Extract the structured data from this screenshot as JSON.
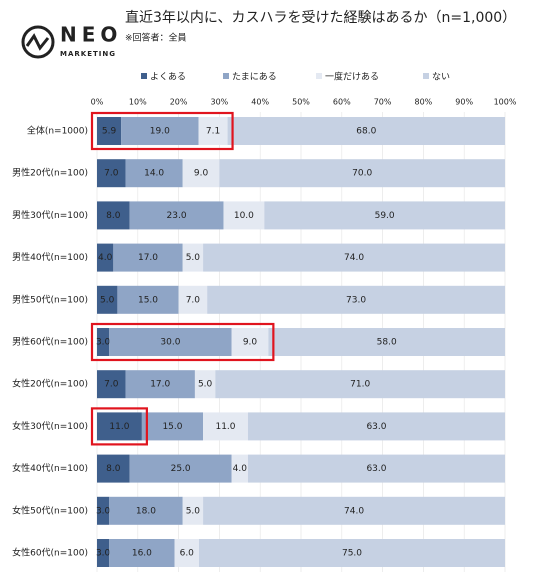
{
  "brand": {
    "name": "NEO",
    "sub": "MARKETING"
  },
  "chart_data": {
    "type": "stacked-bar-horizontal",
    "title": "直近3年以内に、カスハラを受けた経験はあるか（n=1,000）",
    "subtitle": "※回答者：全員",
    "categories": [
      "全体(n=1000)",
      "男性20代(n=100)",
      "男性30代(n=100)",
      "男性40代(n=100)",
      "男性50代(n=100)",
      "男性60代(n=100)",
      "女性20代(n=100)",
      "女性30代(n=100)",
      "女性40代(n=100)",
      "女性50代(n=100)",
      "女性60代(n=100)"
    ],
    "series": [
      {
        "name": "よくある",
        "color": "#3f5f8c",
        "values": [
          5.9,
          7,
          8,
          4,
          5,
          3,
          7,
          11,
          8,
          3,
          3
        ],
        "value_labels": [
          "5.9",
          "7.0",
          "8.0",
          "4.0",
          "5.0",
          "3.0",
          "7.0",
          "11.0",
          "8.0",
          "3.0",
          "3.0"
        ]
      },
      {
        "name": "たまにある",
        "color": "#8fa5c6",
        "values": [
          19,
          14,
          23,
          17,
          15,
          30,
          17,
          15,
          25,
          18,
          16
        ],
        "value_labels": [
          "19.0",
          "14.0",
          "23.0",
          "17.0",
          "15.0",
          "30.0",
          "17.0",
          "15.0",
          "25.0",
          "18.0",
          "16.0"
        ]
      },
      {
        "name": "一度だけある",
        "color": "#e4e9f2",
        "values": [
          7.1,
          9,
          10,
          5,
          7,
          9,
          5,
          11,
          4,
          5,
          6
        ],
        "value_labels": [
          "7.1",
          "9.0",
          "10.0",
          "5.0",
          "7.0",
          "9.0",
          "5.0",
          "11.0",
          "4.0",
          "5.0",
          "6.0"
        ]
      },
      {
        "name": "ない",
        "color": "#c6d1e3",
        "values": [
          68,
          70,
          59,
          74,
          73,
          58,
          71,
          63,
          63,
          74,
          75
        ],
        "value_labels": [
          "68.0",
          "70.0",
          "59.0",
          "74.0",
          "73.0",
          "58.0",
          "71.0",
          "63.0",
          "63.0",
          "74.0",
          "75.0"
        ]
      }
    ],
    "xlim": [
      0,
      100
    ],
    "xticks": [
      {
        "value": 0,
        "label": "0%"
      },
      {
        "value": 10,
        "label": "10%"
      },
      {
        "value": 20,
        "label": "20%"
      },
      {
        "value": 30,
        "label": "30%"
      },
      {
        "value": 40,
        "label": "40%"
      },
      {
        "value": 50,
        "label": "50%"
      },
      {
        "value": 60,
        "label": "60%"
      },
      {
        "value": 70,
        "label": "70%"
      },
      {
        "value": 80,
        "label": "80%"
      },
      {
        "value": 90,
        "label": "90%"
      },
      {
        "value": 100,
        "label": "100%"
      }
    ],
    "grid": true
  }
}
